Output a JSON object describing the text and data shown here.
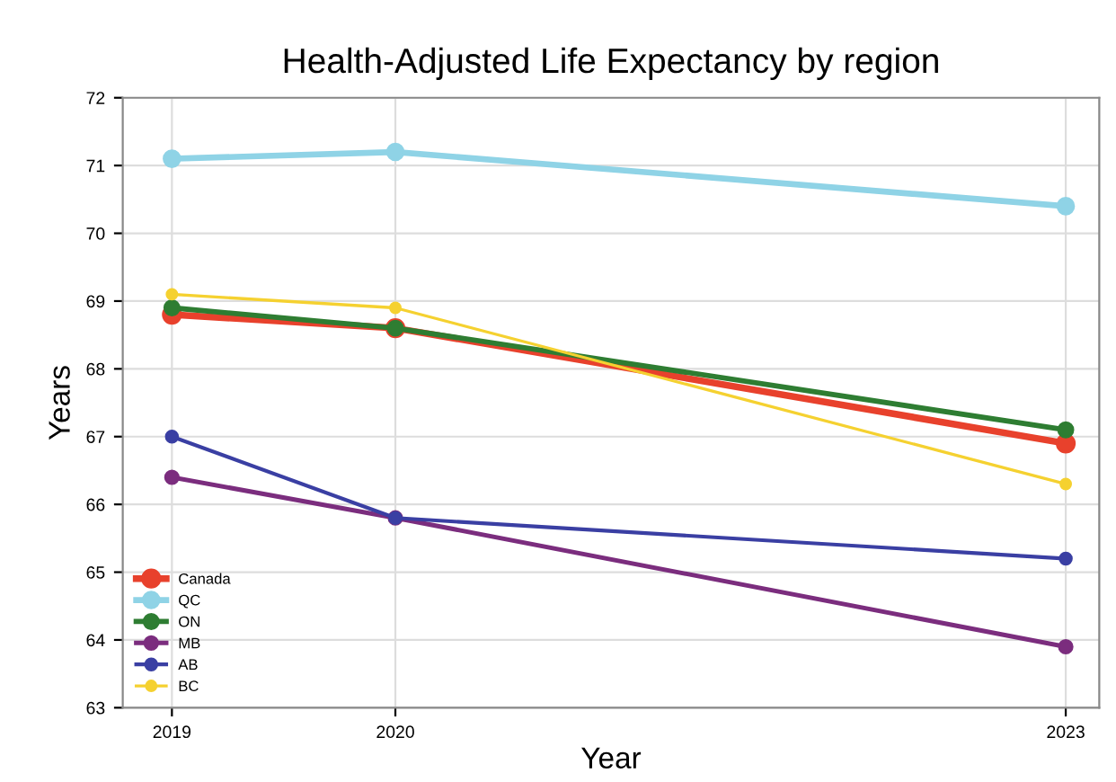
{
  "chart_data": {
    "type": "line",
    "title": "Health-Adjusted Life Expectancy by region",
    "xlabel": "Year",
    "ylabel": "Years",
    "x": [
      2019,
      2020,
      2023
    ],
    "xlim": [
      2018.78,
      2023.15
    ],
    "xticks": [
      2019,
      2020,
      2023
    ],
    "ylim": [
      63,
      72
    ],
    "yticks": [
      63,
      64,
      65,
      66,
      67,
      68,
      69,
      70,
      71,
      72
    ],
    "grid": true,
    "legend": "bottom left",
    "marker": "circle",
    "line_style": "solid",
    "series": [
      {
        "name": "Canada",
        "color": "#e8412c",
        "values": [
          68.8,
          68.6,
          66.9
        ]
      },
      {
        "name": "QC",
        "color": "#8fd3e6",
        "values": [
          71.1,
          71.2,
          70.4
        ]
      },
      {
        "name": "ON",
        "color": "#2e7d32",
        "values": [
          68.9,
          68.6,
          67.1
        ]
      },
      {
        "name": "MB",
        "color": "#7b2d7e",
        "values": [
          66.4,
          65.8,
          63.9
        ]
      },
      {
        "name": "AB",
        "color": "#3a3fa3",
        "values": [
          67.0,
          65.8,
          65.2
        ]
      },
      {
        "name": "BC",
        "color": "#f5d130",
        "values": [
          69.1,
          68.9,
          66.3
        ]
      }
    ]
  }
}
